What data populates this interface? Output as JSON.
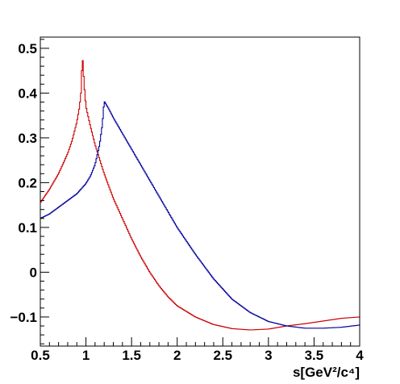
{
  "chart_data": {
    "type": "line",
    "title": "",
    "xlabel": "s[GeV²/c⁴]",
    "ylabel": "",
    "xlim": [
      0.5,
      4.0
    ],
    "ylim": [
      -0.165,
      0.525
    ],
    "x_ticks": [
      0.5,
      1,
      1.5,
      2,
      2.5,
      3,
      3.5,
      4
    ],
    "x_tick_labels": [
      "0.5",
      "1",
      "1.5",
      "2",
      "2.5",
      "3",
      "3.5",
      "4"
    ],
    "y_ticks": [
      -0.1,
      0,
      0.1,
      0.2,
      0.3,
      0.4,
      0.5
    ],
    "y_tick_labels": [
      "−0.1",
      "0",
      "0.1",
      "0.2",
      "0.3",
      "0.4",
      "0.5"
    ],
    "grid": false,
    "legend": "none",
    "style": "step",
    "series": [
      {
        "color": "#cc0000",
        "x": [
          0.5,
          0.6,
          0.7,
          0.8,
          0.85,
          0.9,
          0.93,
          0.95,
          0.96,
          0.98,
          1.0,
          1.05,
          1.1,
          1.2,
          1.3,
          1.4,
          1.5,
          1.6,
          1.7,
          1.8,
          1.9,
          2.0,
          2.2,
          2.4,
          2.6,
          2.8,
          3.0,
          3.2,
          3.4,
          3.6,
          3.8,
          4.0
        ],
        "y": [
          0.155,
          0.185,
          0.22,
          0.265,
          0.295,
          0.335,
          0.37,
          0.41,
          0.49,
          0.42,
          0.37,
          0.325,
          0.285,
          0.22,
          0.165,
          0.12,
          0.075,
          0.035,
          0.0,
          -0.03,
          -0.055,
          -0.075,
          -0.1,
          -0.117,
          -0.126,
          -0.129,
          -0.127,
          -0.12,
          -0.115,
          -0.109,
          -0.103,
          -0.1
        ]
      },
      {
        "color": "#00009e",
        "x": [
          0.5,
          0.6,
          0.7,
          0.8,
          0.9,
          1.0,
          1.05,
          1.1,
          1.15,
          1.18,
          1.2,
          1.25,
          1.3,
          1.4,
          1.5,
          1.6,
          1.7,
          1.8,
          1.9,
          2.0,
          2.2,
          2.4,
          2.6,
          2.8,
          3.0,
          3.2,
          3.4,
          3.6,
          3.8,
          4.0
        ],
        "y": [
          0.12,
          0.13,
          0.145,
          0.16,
          0.175,
          0.198,
          0.215,
          0.24,
          0.285,
          0.33,
          0.382,
          0.365,
          0.345,
          0.31,
          0.275,
          0.24,
          0.205,
          0.17,
          0.135,
          0.1,
          0.04,
          -0.015,
          -0.06,
          -0.09,
          -0.11,
          -0.12,
          -0.125,
          -0.125,
          -0.123,
          -0.118
        ]
      }
    ]
  }
}
